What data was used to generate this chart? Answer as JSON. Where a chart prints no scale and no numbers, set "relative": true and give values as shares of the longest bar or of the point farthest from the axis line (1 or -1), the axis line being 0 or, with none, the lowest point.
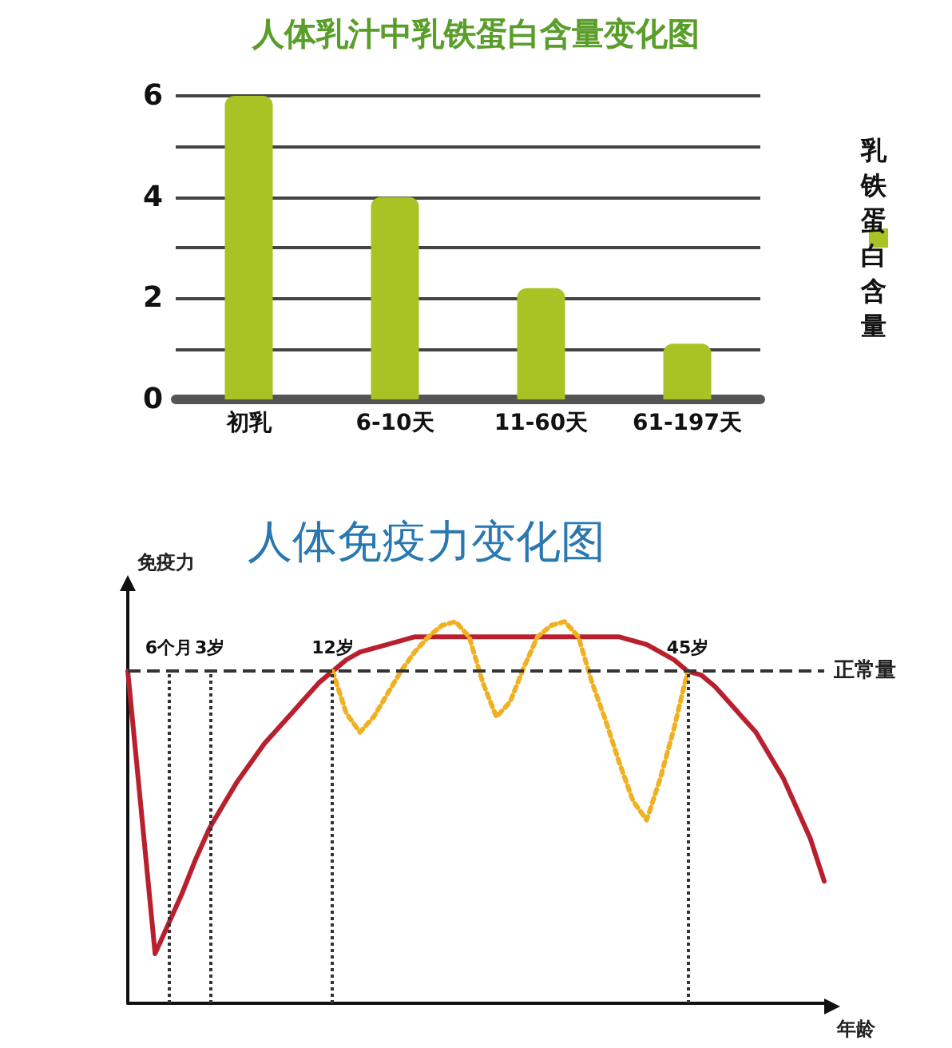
{
  "chart_data": [
    {
      "type": "bar",
      "title": "人体乳汁中乳铁蛋白含量变化图",
      "categories": [
        "初乳",
        "6-10天",
        "11-60天",
        "61-197天"
      ],
      "series": [
        {
          "name": "乳铁蛋白含量",
          "color": "#a9c224",
          "values": [
            6,
            4,
            2.2,
            1.1
          ]
        }
      ],
      "ylim": [
        0,
        6
      ],
      "yticks": [
        0,
        2,
        4,
        6
      ],
      "grid": "y",
      "legend": "right"
    },
    {
      "type": "line",
      "title": "人体免疫力变化图",
      "xlabel": "年龄",
      "ylabel": "免疫力",
      "relative": true,
      "grid": false,
      "marker": "none",
      "categories": [
        null,
        null,
        null,
        "6个月",
        null,
        null,
        "3岁",
        null,
        null,
        null,
        null,
        null,
        null,
        null,
        null,
        "12岁",
        null,
        null,
        null,
        null,
        null,
        null,
        null,
        null,
        null,
        null,
        null,
        null,
        null,
        null,
        null,
        null,
        null,
        null,
        null,
        null,
        null,
        null,
        null,
        null,
        null,
        "45岁",
        null,
        null,
        null,
        null,
        null,
        null,
        null,
        null,
        null,
        null
      ],
      "series": [
        {
          "color": "#b8202e",
          "line_style": "solid",
          "values": [
            0.87,
            0.5,
            0.13,
            0.21,
            0.29,
            0.38,
            0.46,
            0.52,
            0.58,
            0.63,
            0.68,
            0.72,
            0.76,
            0.8,
            0.84,
            0.87,
            0.9,
            0.92,
            0.93,
            0.94,
            0.95,
            0.96,
            0.96,
            0.96,
            0.96,
            0.96,
            0.96,
            0.96,
            0.96,
            0.96,
            0.96,
            0.96,
            0.96,
            0.96,
            0.96,
            0.96,
            0.96,
            0.95,
            0.94,
            0.92,
            0.9,
            0.87,
            0.86,
            0.83,
            0.79,
            0.75,
            0.71,
            0.65,
            0.59,
            0.51,
            0.43,
            0.32
          ]
        },
        {
          "color": "#f0b020",
          "line_style": "dotted",
          "values": [
            null,
            null,
            null,
            null,
            null,
            null,
            null,
            null,
            null,
            null,
            null,
            null,
            null,
            null,
            null,
            0.87,
            0.76,
            0.71,
            0.75,
            0.81,
            0.87,
            0.92,
            0.96,
            0.99,
            1.0,
            0.96,
            0.84,
            0.75,
            0.79,
            0.88,
            0.96,
            0.99,
            1.0,
            0.96,
            0.84,
            0.74,
            0.63,
            0.53,
            0.48,
            0.59,
            0.72,
            0.87,
            null,
            null,
            null,
            null,
            null,
            null,
            null,
            null,
            null,
            null
          ]
        }
      ],
      "ref_lines": [
        {
          "axis": "y",
          "value": 0.87,
          "label": "正常量",
          "line_style": "dashed",
          "color": "#333333"
        },
        {
          "axis": "x",
          "value": "6个月",
          "line_style": "dotted",
          "color": "#333333"
        },
        {
          "axis": "x",
          "value": "3岁",
          "line_style": "dotted",
          "color": "#333333"
        },
        {
          "axis": "x",
          "value": "12岁",
          "line_style": "dotted",
          "color": "#333333"
        },
        {
          "axis": "x",
          "value": "45岁",
          "line_style": "dotted",
          "color": "#333333"
        }
      ]
    }
  ]
}
